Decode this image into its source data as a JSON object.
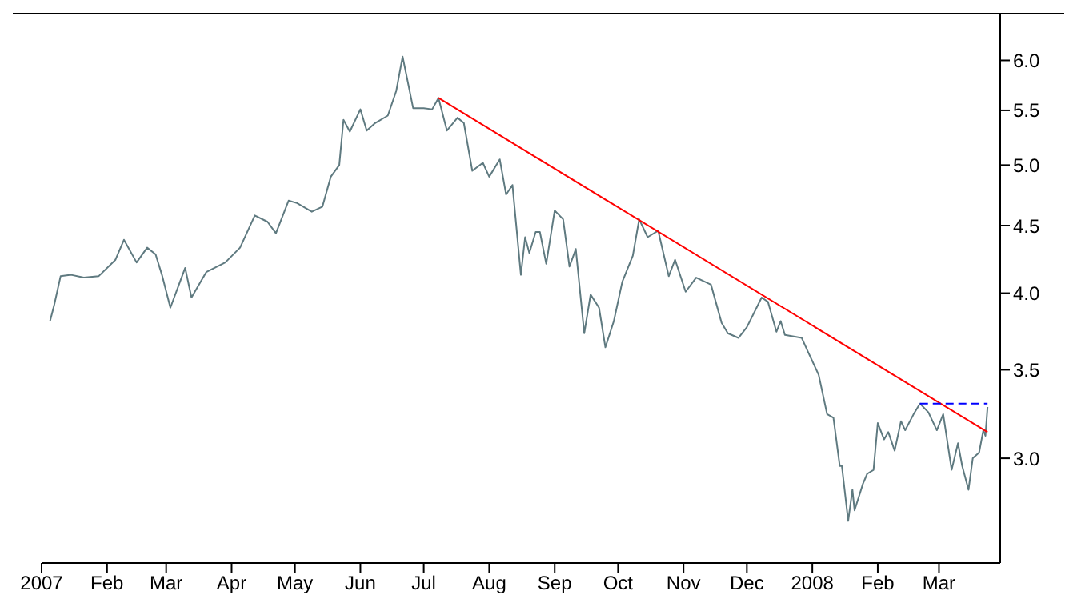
{
  "chart_data": {
    "type": "line",
    "x": [
      "2007-01-05",
      "2007-01-07",
      "2007-01-10",
      "2007-01-15",
      "2007-01-21",
      "2007-01-28",
      "2007-02-05",
      "2007-02-09",
      "2007-02-15",
      "2007-02-20",
      "2007-02-24",
      "2007-02-27",
      "2007-03-03",
      "2007-03-10",
      "2007-03-13",
      "2007-03-20",
      "2007-03-29",
      "2007-04-05",
      "2007-04-12",
      "2007-04-18",
      "2007-04-22",
      "2007-04-28",
      "2007-05-02",
      "2007-05-09",
      "2007-05-14",
      "2007-05-18",
      "2007-05-22",
      "2007-05-24",
      "2007-05-27",
      "2007-06-01",
      "2007-06-04",
      "2007-06-08",
      "2007-06-14",
      "2007-06-18",
      "2007-06-21",
      "2007-06-26",
      "2007-07-01",
      "2007-07-05",
      "2007-07-08",
      "2007-07-12",
      "2007-07-17",
      "2007-07-20",
      "2007-07-24",
      "2007-07-29",
      "2007-08-01",
      "2007-08-06",
      "2007-08-09",
      "2007-08-12",
      "2007-08-16",
      "2007-08-18",
      "2007-08-20",
      "2007-08-23",
      "2007-08-25",
      "2007-08-28",
      "2007-09-01",
      "2007-09-05",
      "2007-09-08",
      "2007-09-11",
      "2007-09-15",
      "2007-09-18",
      "2007-09-22",
      "2007-09-25",
      "2007-09-29",
      "2007-10-03",
      "2007-10-08",
      "2007-10-11",
      "2007-10-15",
      "2007-10-20",
      "2007-10-25",
      "2007-10-28",
      "2007-11-02",
      "2007-11-07",
      "2007-11-14",
      "2007-11-19",
      "2007-11-22",
      "2007-11-27",
      "2007-12-01",
      "2007-12-08",
      "2007-12-11",
      "2007-12-15",
      "2007-12-17",
      "2007-12-19",
      "2007-12-27",
      "2007-12-30",
      "2008-01-04",
      "2008-01-08",
      "2008-01-11",
      "2008-01-14",
      "2008-01-15",
      "2008-01-18",
      "2008-01-20",
      "2008-01-21",
      "2008-01-25",
      "2008-01-27",
      "2008-01-30",
      "2008-02-01",
      "2008-02-04",
      "2008-02-06",
      "2008-02-09",
      "2008-02-12",
      "2008-02-14",
      "2008-02-18",
      "2008-02-21",
      "2008-02-25",
      "2008-02-29",
      "2008-03-03",
      "2008-03-07",
      "2008-03-10",
      "2008-03-12",
      "2008-03-15",
      "2008-03-17",
      "2008-03-20",
      "2008-03-22",
      "2008-03-23",
      "2008-03-24"
    ],
    "series": [
      {
        "color": "#5f7a80",
        "values": [
          3.81,
          3.92,
          4.12,
          4.13,
          4.11,
          4.12,
          4.24,
          4.39,
          4.22,
          4.33,
          4.28,
          4.13,
          3.9,
          4.18,
          3.97,
          4.15,
          4.22,
          4.33,
          4.58,
          4.53,
          4.44,
          4.7,
          4.68,
          4.61,
          4.65,
          4.9,
          5.0,
          5.41,
          5.3,
          5.51,
          5.31,
          5.38,
          5.45,
          5.69,
          6.04,
          5.52,
          5.52,
          5.51,
          5.62,
          5.31,
          5.43,
          5.38,
          4.95,
          5.02,
          4.9,
          5.05,
          4.75,
          4.83,
          4.13,
          4.41,
          4.29,
          4.45,
          4.45,
          4.21,
          4.62,
          4.55,
          4.19,
          4.32,
          3.73,
          3.99,
          3.9,
          3.64,
          3.81,
          4.08,
          4.27,
          4.55,
          4.41,
          4.46,
          4.12,
          4.24,
          4.01,
          4.11,
          4.06,
          3.8,
          3.73,
          3.7,
          3.77,
          3.97,
          3.94,
          3.74,
          3.81,
          3.72,
          3.7,
          3.61,
          3.47,
          3.24,
          3.22,
          2.96,
          2.96,
          2.69,
          2.84,
          2.74,
          2.87,
          2.92,
          2.94,
          3.19,
          3.1,
          3.14,
          3.04,
          3.2,
          3.15,
          3.24,
          3.3,
          3.25,
          3.15,
          3.24,
          2.94,
          3.08,
          2.96,
          2.84,
          3.0,
          3.03,
          3.15,
          3.12,
          3.28
        ]
      },
      {
        "type": "line",
        "color": "#ff0000",
        "x": [
          "2007-07-08",
          "2008-03-24"
        ],
        "values": [
          5.62,
          3.14
        ]
      },
      {
        "type": "line",
        "color": "#0000ff",
        "line_style": "dashed",
        "x": [
          "2008-02-21",
          "2008-03-24"
        ],
        "values": [
          3.3,
          3.3
        ]
      }
    ],
    "xlim": [
      "2007-01-01",
      "2008-03-30"
    ],
    "xticks": [
      {
        "value": "2007-01-01",
        "label": "2007"
      },
      {
        "value": "2007-02-01",
        "label": "Feb"
      },
      {
        "value": "2007-03-01",
        "label": "Mar"
      },
      {
        "value": "2007-04-01",
        "label": "Apr"
      },
      {
        "value": "2007-05-01",
        "label": "May"
      },
      {
        "value": "2007-06-01",
        "label": "Jun"
      },
      {
        "value": "2007-07-01",
        "label": "Jul"
      },
      {
        "value": "2007-08-01",
        "label": "Aug"
      },
      {
        "value": "2007-09-01",
        "label": "Sep"
      },
      {
        "value": "2007-10-01",
        "label": "Oct"
      },
      {
        "value": "2007-11-01",
        "label": "Nov"
      },
      {
        "value": "2007-12-01",
        "label": "Dec"
      },
      {
        "value": "2008-01-01",
        "label": "2008"
      },
      {
        "value": "2008-02-01",
        "label": "Feb"
      },
      {
        "value": "2008-03-01",
        "label": "Mar"
      }
    ],
    "ylim": [
      2.5,
      6.5
    ],
    "yticks": [
      {
        "value": 3,
        "label": "3.0"
      },
      {
        "value": 3.5,
        "label": "3.5"
      },
      {
        "value": 4,
        "label": "4.0"
      },
      {
        "value": 4.5,
        "label": "4.5"
      },
      {
        "value": 5,
        "label": "5.0"
      },
      {
        "value": 5.5,
        "label": "5.5"
      },
      {
        "value": 6,
        "label": "6.0"
      }
    ],
    "log": "y",
    "marker": "none",
    "line_style": "solid"
  }
}
